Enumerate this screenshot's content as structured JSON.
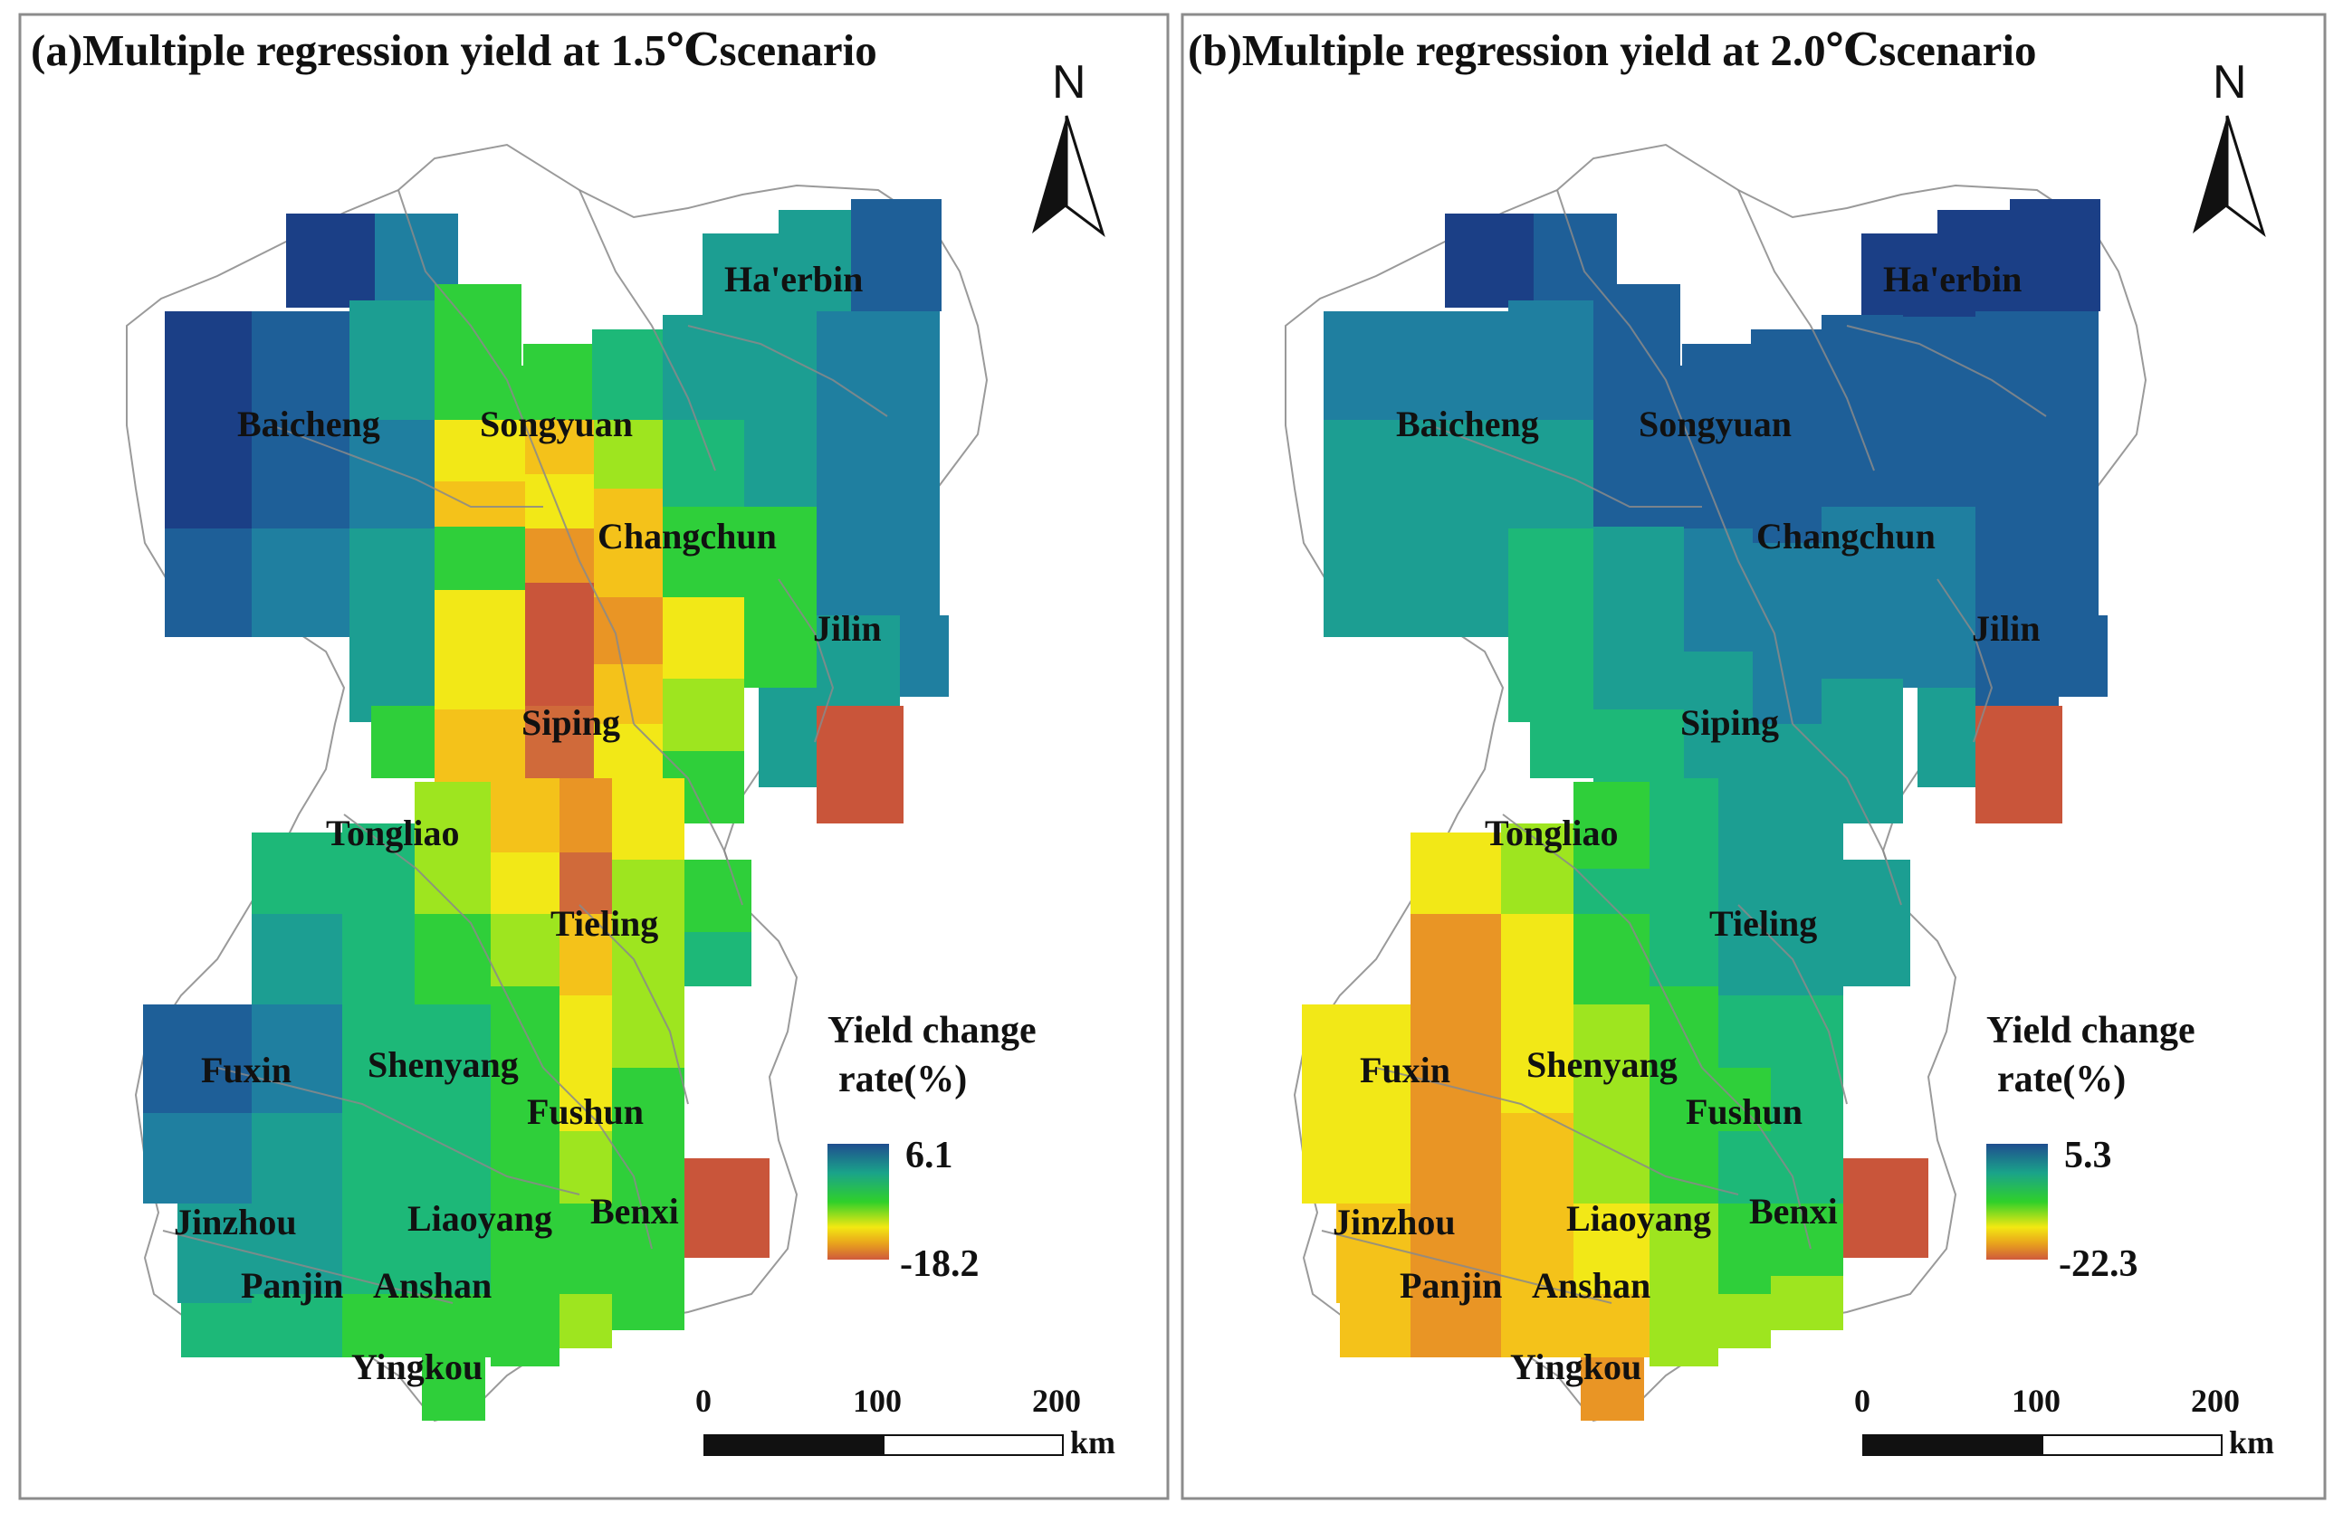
{
  "figure": {
    "type": "map",
    "panels": 2
  },
  "colors": {
    "ramp_high": "#1f4e8f",
    "ramp_mid_high": "#1aa38a",
    "ramp_mid": "#2fd02a",
    "ramp_mid_low": "#f3e812",
    "ramp_low_mid": "#e9a31c",
    "ramp_low": "#cf5a3c",
    "frame": "#8c8c8c",
    "boundary": "#9a9a9a"
  },
  "panels": [
    {
      "id": "a",
      "title": "(a)Multiple regression yield at 1.5℃scenario",
      "north_label": "N",
      "legend": {
        "title_line1": "Yield change",
        "title_line2": "rate(%)",
        "max": "6.1",
        "min": "-18.2"
      },
      "scalebar": {
        "tick_0": "0",
        "tick_1": "100",
        "tick_2": "200",
        "unit": "km"
      },
      "cities": {
        "haerbin": "Ha'erbin",
        "baicheng": "Baicheng",
        "songyuan": "Songyuan",
        "changchun": "Changchun",
        "jilin": "Jilin",
        "siping": "Siping",
        "tongliao": "Tongliao",
        "tieling": "Tieling",
        "fuxin": "Fuxin",
        "shenyang": "Shenyang",
        "fushun": "Fushun",
        "jinzhou": "Jinzhou",
        "liaoyang": "Liaoyang",
        "benxi": "Benxi",
        "panjin": "Panjin",
        "anshan": "Anshan",
        "yingkou": "Yingkou"
      }
    },
    {
      "id": "b",
      "title": "(b)Multiple regression yield at 2.0℃scenario",
      "north_label": "N",
      "legend": {
        "title_line1": "Yield change",
        "title_line2": "rate(%)",
        "max": "5.3",
        "min": "-22.3"
      },
      "scalebar": {
        "tick_0": "0",
        "tick_1": "100",
        "tick_2": "200",
        "unit": "km"
      },
      "cities": {
        "haerbin": "Ha'erbin",
        "baicheng": "Baicheng",
        "songyuan": "Songyuan",
        "changchun": "Changchun",
        "jilin": "Jilin",
        "siping": "Siping",
        "tongliao": "Tongliao",
        "tieling": "Tieling",
        "fuxin": "Fuxin",
        "shenyang": "Shenyang",
        "fushun": "Fushun",
        "jinzhou": "Jinzhou",
        "liaoyang": "Liaoyang",
        "benxi": "Benxi",
        "panjin": "Panjin",
        "anshan": "Anshan",
        "yingkou": "Yingkou"
      }
    }
  ]
}
